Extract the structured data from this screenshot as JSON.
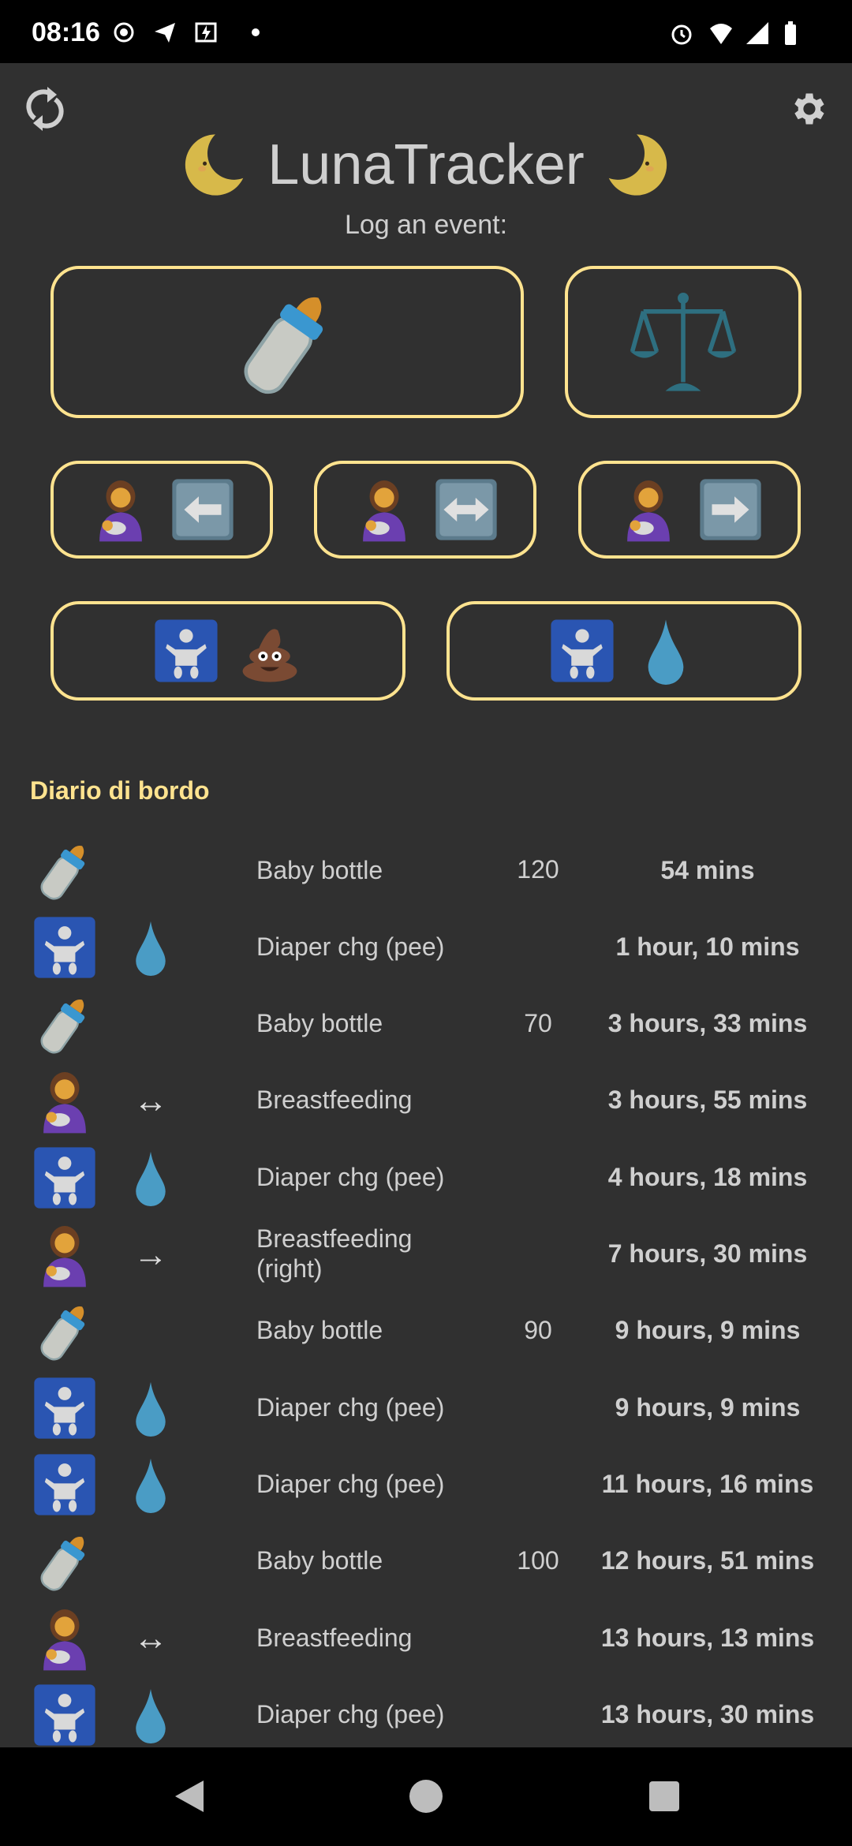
{
  "status_bar": {
    "time": "08:16",
    "left_icons": [
      "record-icon",
      "telegram-icon",
      "battery-saver-icon",
      "dot-icon"
    ],
    "right_icons": [
      "alarm-icon",
      "wifi-icon",
      "signal-icon",
      "battery-icon"
    ]
  },
  "header": {
    "title": "LunaTracker",
    "subtitle": "Log an event:",
    "sync_icon": "sync-icon",
    "settings_icon": "gear-icon"
  },
  "colors": {
    "background": "#303030",
    "accent": "#ffe38f",
    "text": "#cfcfcf"
  },
  "actions": [
    {
      "name": "baby-bottle",
      "icons": [
        "bottle"
      ]
    },
    {
      "name": "weight",
      "icons": [
        "scale"
      ]
    },
    {
      "name": "breastfeeding-left",
      "icons": [
        "woman",
        "key-left"
      ]
    },
    {
      "name": "breastfeeding-both",
      "icons": [
        "woman",
        "key-lr"
      ]
    },
    {
      "name": "breastfeeding-right",
      "icons": [
        "woman",
        "key-right"
      ]
    },
    {
      "name": "diaper-poo",
      "icons": [
        "baby",
        "poop"
      ]
    },
    {
      "name": "diaper-pee",
      "icons": [
        "baby",
        "drop"
      ]
    }
  ],
  "log": {
    "title": "Diario di bordo",
    "entries": [
      {
        "icon": "bottle",
        "icon2": "",
        "label": "Baby bottle",
        "amount": "120",
        "time": "54 mins"
      },
      {
        "icon": "baby",
        "icon2": "drop",
        "label": "Diaper chg (pee)",
        "amount": "",
        "time": "1 hour, 10 mins"
      },
      {
        "icon": "bottle",
        "icon2": "",
        "label": "Baby bottle",
        "amount": "70",
        "time": "3 hours, 33 mins"
      },
      {
        "icon": "woman",
        "icon2": "↔",
        "label": "Breastfeeding",
        "amount": "",
        "time": "3 hours, 55 mins"
      },
      {
        "icon": "baby",
        "icon2": "drop",
        "label": "Diaper chg (pee)",
        "amount": "",
        "time": "4 hours, 18 mins"
      },
      {
        "icon": "woman",
        "icon2": "→",
        "label": "Breastfeeding (right)",
        "amount": "",
        "time": "7 hours, 30 mins"
      },
      {
        "icon": "bottle",
        "icon2": "",
        "label": "Baby bottle",
        "amount": "90",
        "time": "9 hours, 9 mins"
      },
      {
        "icon": "baby",
        "icon2": "drop",
        "label": "Diaper chg (pee)",
        "amount": "",
        "time": "9 hours, 9 mins"
      },
      {
        "icon": "baby",
        "icon2": "drop",
        "label": "Diaper chg (pee)",
        "amount": "",
        "time": "11 hours, 16 mins"
      },
      {
        "icon": "bottle",
        "icon2": "",
        "label": "Baby bottle",
        "amount": "100",
        "time": "12 hours, 51 mins"
      },
      {
        "icon": "woman",
        "icon2": "↔",
        "label": "Breastfeeding",
        "amount": "",
        "time": "13 hours, 13 mins"
      },
      {
        "icon": "baby",
        "icon2": "drop",
        "label": "Diaper chg (pee)",
        "amount": "",
        "time": "13 hours, 30 mins"
      }
    ]
  },
  "nav_bar": {
    "buttons": [
      "back-icon",
      "home-icon",
      "recents-icon"
    ]
  }
}
